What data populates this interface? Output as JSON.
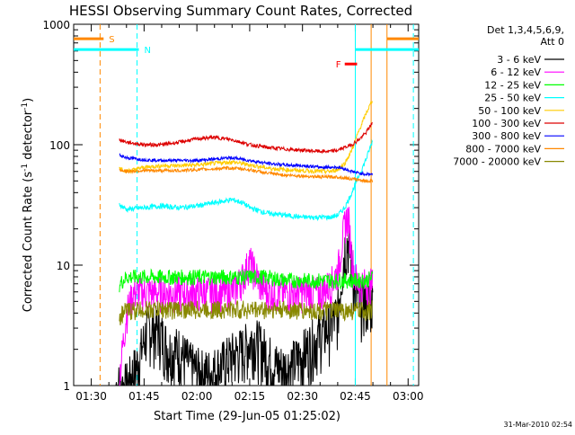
{
  "chart_data": {
    "type": "line",
    "title": "HESSI Observing Summary Count Rates, Corrected",
    "xlabel": "Start Time (29-Jun-05 01:25:02)",
    "ylabel_main": "Corrected Count Rate (s",
    "ylabel_sup1": "-1",
    "ylabel_mid": " detector",
    "ylabel_sup2": "-1",
    "ylabel_end": ")",
    "y_scale": "log",
    "ylim": [
      1,
      1000
    ],
    "xlim_minutes": [
      85,
      183
    ],
    "x_ticks": [
      {
        "t": 90,
        "label": "01:30"
      },
      {
        "t": 105,
        "label": "01:45"
      },
      {
        "t": 120,
        "label": "02:00"
      },
      {
        "t": 135,
        "label": "02:15"
      },
      {
        "t": 150,
        "label": "02:30"
      },
      {
        "t": 165,
        "label": "02:45"
      },
      {
        "t": 180,
        "label": "03:00"
      }
    ],
    "y_ticks": [
      {
        "v": 1,
        "label": "1"
      },
      {
        "v": 10,
        "label": "10"
      },
      {
        "v": 100,
        "label": "100"
      },
      {
        "v": 1000,
        "label": "1000"
      }
    ],
    "legend_header": [
      "Det 1,3,4,5,6,9,",
      "Att 0"
    ],
    "series": [
      {
        "name": "3 - 6 keV",
        "color": "#000000",
        "x": [
          97,
          100,
          103,
          106,
          109,
          112,
          115,
          118,
          121,
          124,
          127,
          130,
          133,
          136,
          139,
          142,
          145,
          148,
          151,
          154,
          157,
          160,
          161,
          162,
          163,
          164,
          165,
          166,
          168,
          170
        ],
        "y": [
          1,
          1,
          1.5,
          3,
          3,
          2,
          2,
          1.5,
          1.3,
          1.3,
          1.5,
          1.8,
          2,
          2.5,
          2,
          1.5,
          1.4,
          1.6,
          2,
          2.5,
          3,
          4,
          8,
          14,
          16,
          10,
          6,
          5,
          5,
          5
        ]
      },
      {
        "name": "6 - 12 keV",
        "color": "#ff00ff",
        "x": [
          98,
          100,
          102,
          105,
          110,
          115,
          120,
          125,
          130,
          133,
          135,
          138,
          140,
          145,
          150,
          155,
          158,
          160,
          161,
          162,
          163,
          164,
          165,
          166,
          168,
          170
        ],
        "y": [
          1.2,
          4,
          6,
          6,
          6,
          6,
          6,
          6,
          6,
          8,
          11,
          7,
          6,
          6,
          6,
          6,
          7,
          9,
          14,
          22,
          26,
          12,
          8,
          7,
          7,
          7
        ]
      },
      {
        "name": "12 - 25 keV",
        "color": "#00ff00",
        "x": [
          98,
          100,
          105,
          110,
          115,
          120,
          125,
          130,
          135,
          140,
          145,
          150,
          155,
          160,
          165,
          168,
          170
        ],
        "y": [
          7,
          8,
          8,
          8,
          8,
          8,
          8,
          8,
          8,
          8,
          7.5,
          7.5,
          7.5,
          7.5,
          7.5,
          7.5,
          8
        ]
      },
      {
        "name": "25 - 50 keV",
        "color": "#00ffff",
        "x": [
          98,
          100,
          105,
          110,
          115,
          120,
          125,
          130,
          133,
          135,
          140,
          145,
          150,
          155,
          158,
          160,
          162,
          164,
          166,
          168,
          170
        ],
        "y": [
          32,
          29,
          30,
          31,
          30,
          31,
          33,
          35,
          33,
          30,
          27,
          26,
          25,
          25,
          25,
          26,
          30,
          40,
          55,
          75,
          110
        ]
      },
      {
        "name": "50 - 100 keV",
        "color": "#ffcc00",
        "x": [
          98,
          100,
          105,
          110,
          115,
          120,
          125,
          130,
          135,
          140,
          145,
          150,
          155,
          158,
          160,
          162,
          164,
          166,
          168,
          170
        ],
        "y": [
          65,
          60,
          65,
          67,
          67,
          68,
          70,
          72,
          68,
          64,
          62,
          61,
          60,
          60,
          62,
          70,
          90,
          130,
          180,
          240
        ]
      },
      {
        "name": "100 - 300 keV",
        "color": "#dd0000",
        "x": [
          98,
          100,
          105,
          110,
          115,
          120,
          125,
          130,
          135,
          140,
          145,
          150,
          155,
          158,
          160,
          162,
          164,
          166,
          168,
          170
        ],
        "y": [
          110,
          105,
          100,
          100,
          105,
          112,
          115,
          110,
          100,
          95,
          92,
          90,
          88,
          88,
          90,
          95,
          100,
          110,
          125,
          155
        ]
      },
      {
        "name": "300 - 800 keV",
        "color": "#0000ff",
        "x": [
          98,
          100,
          105,
          110,
          115,
          120,
          125,
          130,
          135,
          140,
          145,
          150,
          155,
          158,
          160,
          162,
          164,
          166,
          168,
          170
        ],
        "y": [
          82,
          78,
          75,
          74,
          74,
          74,
          76,
          78,
          74,
          70,
          68,
          67,
          65,
          65,
          65,
          63,
          60,
          58,
          57,
          57
        ]
      },
      {
        "name": "800 - 7000 keV",
        "color": "#ff8800",
        "x": [
          98,
          100,
          105,
          110,
          115,
          120,
          125,
          130,
          135,
          140,
          145,
          150,
          155,
          158,
          160,
          162,
          164,
          166,
          168,
          170
        ],
        "y": [
          62,
          60,
          61,
          61,
          61,
          62,
          63,
          64,
          62,
          58,
          56,
          55,
          54,
          54,
          54,
          53,
          52,
          51,
          50,
          50
        ]
      },
      {
        "name": "7000 - 20000 keV",
        "color": "#888800",
        "x": [
          98,
          100,
          105,
          110,
          115,
          120,
          125,
          130,
          135,
          140,
          145,
          150,
          155,
          160,
          165,
          168,
          170
        ],
        "y": [
          3.8,
          4.2,
          4.3,
          4.3,
          4.3,
          4.3,
          4.3,
          4.3,
          4.3,
          4.3,
          4.3,
          4.2,
          4.2,
          4.2,
          4.2,
          4.2,
          4.3
        ]
      }
    ],
    "flags": [
      {
        "label": "S",
        "color": "#ff8800",
        "y_frac": 0.04,
        "x_start": 85,
        "x_end": 93.5,
        "vlines": [
          92.5,
          169.5
        ]
      },
      {
        "label": "N",
        "color": "#00ffff",
        "y_frac": 0.07,
        "x_start": 85,
        "x_end": 103.5,
        "vlines": [
          103,
          165
        ]
      },
      {
        "label": "F",
        "color": "#ff0000",
        "y_frac": 0.11,
        "x_start": 162,
        "x_end": 165.5,
        "vlines": []
      }
    ],
    "right_bars": [
      {
        "color": "#ff8800",
        "y_frac": 0.04,
        "x_start": 174,
        "x_end": 183,
        "vline": 174
      },
      {
        "color": "#00ffff",
        "y_frac": 0.07,
        "x_start": 165,
        "x_end": 183,
        "vline": 181.5
      }
    ],
    "footer": "31-Mar-2010 02:54"
  }
}
